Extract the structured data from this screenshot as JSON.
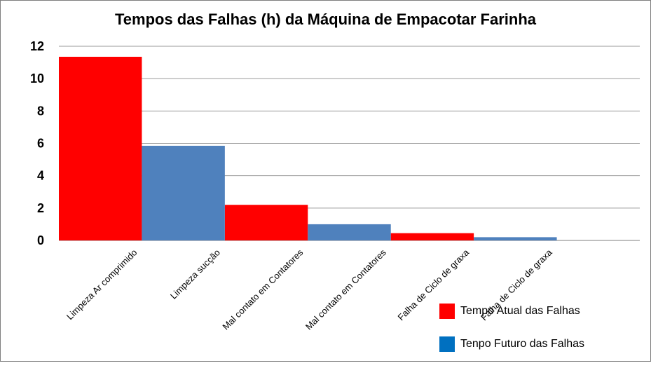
{
  "chart_data": {
    "type": "bar",
    "title": "Tempos das Falhas (h) da Máquina de Empacotar Farinha",
    "xlabel": "",
    "ylabel": "",
    "ylim": [
      0,
      12
    ],
    "yticks": [
      0,
      2,
      4,
      6,
      8,
      10,
      12
    ],
    "grid": true,
    "legend_position": "bottom-right",
    "categories": [
      "Limpeza Ar comprimido",
      "Limpeza  sucção",
      "Mal contato em Contatores",
      "Mal contato em Contatores",
      "Falha de Ciclo de graxa",
      "Falha de Ciclo de graxa",
      ""
    ],
    "series": [
      {
        "name": "Tempo Atual  das Falhas",
        "color": "#ff0000",
        "values": [
          11.35,
          null,
          2.2,
          null,
          0.45,
          null,
          null
        ]
      },
      {
        "name": "Tenpo Futuro das Falhas",
        "color": "#4f81bd",
        "values": [
          null,
          5.85,
          null,
          1.0,
          null,
          0.2,
          null
        ]
      }
    ],
    "legend": [
      {
        "name": "Tempo Atual  das Falhas",
        "color": "#ff0000"
      },
      {
        "name": "Tenpo Futuro das Falhas",
        "color": "#0070c0"
      }
    ]
  }
}
